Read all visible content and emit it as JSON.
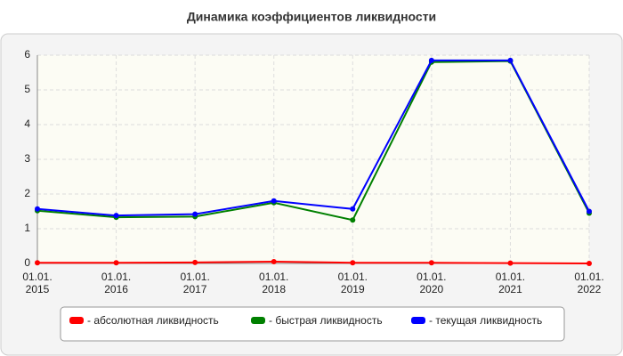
{
  "chart_data": {
    "type": "line",
    "title": "Динамика коэффициентов ликвидности",
    "categories": [
      "01.01.2015",
      "01.01.2016",
      "01.01.2017",
      "01.01.2018",
      "01.01.2019",
      "01.01.2020",
      "01.01.2021",
      "01.01.2022"
    ],
    "series": [
      {
        "name": "- абсолютная ликвидность",
        "color": "#ff0000",
        "values": [
          0.02,
          0.02,
          0.03,
          0.05,
          0.02,
          0.02,
          0.01,
          0.0
        ]
      },
      {
        "name": "- быстрая ликвидность",
        "color": "#008000",
        "values": [
          1.52,
          1.33,
          1.35,
          1.75,
          1.25,
          5.8,
          5.83,
          1.45
        ]
      },
      {
        "name": "- текущая ликвидность",
        "color": "#0000ff",
        "values": [
          1.57,
          1.38,
          1.42,
          1.8,
          1.57,
          5.85,
          5.85,
          1.5
        ]
      }
    ],
    "ylim": [
      0,
      6
    ],
    "yticks": [
      0,
      1,
      2,
      3,
      4,
      5,
      6
    ],
    "grid": true,
    "legend": "bottom"
  }
}
